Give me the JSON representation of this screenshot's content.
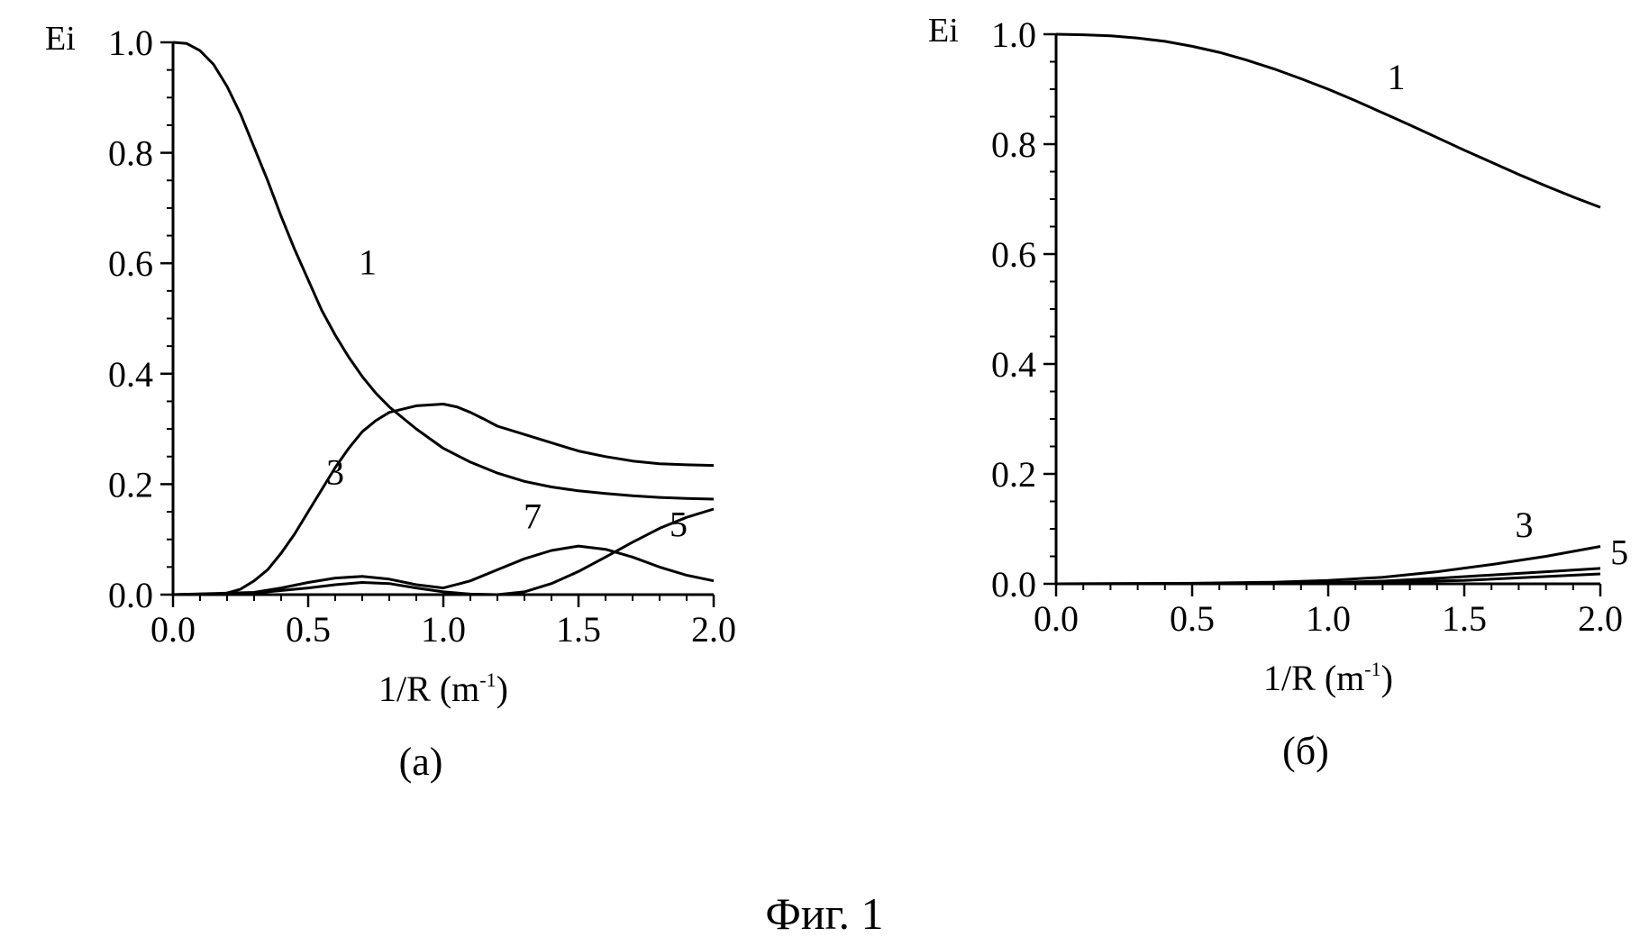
{
  "figure_caption": "Фиг. 1",
  "chart_data": [
    {
      "type": "line",
      "panel_label": "(a)",
      "title": "",
      "xlabel_base": "1/R (m",
      "xlabel_sup": "-1",
      "xlabel_end": ")",
      "ylabel": "Ei",
      "xlim": [
        0,
        2
      ],
      "ylim": [
        0,
        1
      ],
      "xticks": [
        "0.0",
        "0.5",
        "1.0",
        "1.5",
        "2.0"
      ],
      "yticks": [
        "0.0",
        "0.2",
        "0.4",
        "0.6",
        "0.8",
        "1.0"
      ],
      "grid": false,
      "series": [
        {
          "name": "1",
          "label_at": [
            0.72,
            0.58
          ],
          "points": [
            [
              0,
              1.0
            ],
            [
              0.05,
              0.998
            ],
            [
              0.1,
              0.985
            ],
            [
              0.15,
              0.96
            ],
            [
              0.2,
              0.92
            ],
            [
              0.25,
              0.87
            ],
            [
              0.3,
              0.81
            ],
            [
              0.35,
              0.75
            ],
            [
              0.4,
              0.685
            ],
            [
              0.45,
              0.625
            ],
            [
              0.5,
              0.57
            ],
            [
              0.55,
              0.515
            ],
            [
              0.6,
              0.47
            ],
            [
              0.65,
              0.43
            ],
            [
              0.7,
              0.395
            ],
            [
              0.75,
              0.365
            ],
            [
              0.8,
              0.34
            ],
            [
              0.9,
              0.3
            ],
            [
              1.0,
              0.265
            ],
            [
              1.1,
              0.24
            ],
            [
              1.2,
              0.22
            ],
            [
              1.3,
              0.205
            ],
            [
              1.4,
              0.195
            ],
            [
              1.5,
              0.188
            ],
            [
              1.6,
              0.183
            ],
            [
              1.7,
              0.179
            ],
            [
              1.8,
              0.176
            ],
            [
              1.9,
              0.174
            ],
            [
              2.0,
              0.173
            ]
          ]
        },
        {
          "name": "3",
          "label_at": [
            0.6,
            0.2
          ],
          "points": [
            [
              0,
              0
            ],
            [
              0.15,
              0.0
            ],
            [
              0.2,
              0.003
            ],
            [
              0.25,
              0.01
            ],
            [
              0.3,
              0.025
            ],
            [
              0.35,
              0.045
            ],
            [
              0.4,
              0.075
            ],
            [
              0.45,
              0.11
            ],
            [
              0.5,
              0.15
            ],
            [
              0.55,
              0.19
            ],
            [
              0.6,
              0.23
            ],
            [
              0.65,
              0.265
            ],
            [
              0.7,
              0.295
            ],
            [
              0.75,
              0.315
            ],
            [
              0.8,
              0.33
            ],
            [
              0.9,
              0.342
            ],
            [
              1.0,
              0.345
            ],
            [
              1.05,
              0.34
            ],
            [
              1.1,
              0.33
            ],
            [
              1.15,
              0.318
            ],
            [
              1.2,
              0.305
            ],
            [
              1.3,
              0.29
            ],
            [
              1.4,
              0.275
            ],
            [
              1.5,
              0.26
            ],
            [
              1.6,
              0.25
            ],
            [
              1.7,
              0.242
            ],
            [
              1.8,
              0.237
            ],
            [
              1.9,
              0.235
            ],
            [
              2.0,
              0.234
            ]
          ]
        },
        {
          "name": "5",
          "label_at": [
            1.87,
            0.105
          ],
          "points": [
            [
              0,
              0
            ],
            [
              0.3,
              0.003
            ],
            [
              0.5,
              0.012
            ],
            [
              0.6,
              0.018
            ],
            [
              0.7,
              0.022
            ],
            [
              0.8,
              0.02
            ],
            [
              0.9,
              0.012
            ],
            [
              1.0,
              0.005
            ],
            [
              1.1,
              0.001
            ],
            [
              1.2,
              0.0
            ],
            [
              1.3,
              0.005
            ],
            [
              1.4,
              0.02
            ],
            [
              1.5,
              0.042
            ],
            [
              1.6,
              0.068
            ],
            [
              1.7,
              0.095
            ],
            [
              1.8,
              0.12
            ],
            [
              1.9,
              0.14
            ],
            [
              2.0,
              0.155
            ]
          ]
        },
        {
          "name": "7",
          "label_at": [
            1.33,
            0.12
          ],
          "points": [
            [
              0,
              0
            ],
            [
              0.3,
              0.004
            ],
            [
              0.4,
              0.012
            ],
            [
              0.5,
              0.022
            ],
            [
              0.6,
              0.03
            ],
            [
              0.7,
              0.033
            ],
            [
              0.8,
              0.028
            ],
            [
              0.9,
              0.018
            ],
            [
              1.0,
              0.012
            ],
            [
              1.1,
              0.025
            ],
            [
              1.2,
              0.045
            ],
            [
              1.3,
              0.065
            ],
            [
              1.4,
              0.08
            ],
            [
              1.5,
              0.088
            ],
            [
              1.6,
              0.082
            ],
            [
              1.7,
              0.068
            ],
            [
              1.8,
              0.05
            ],
            [
              1.9,
              0.035
            ],
            [
              2.0,
              0.025
            ]
          ]
        }
      ]
    },
    {
      "type": "line",
      "panel_label": "(б)",
      "title": "",
      "xlabel_base": "1/R (m",
      "xlabel_sup": "-1",
      "xlabel_end": ")",
      "ylabel": "Ei",
      "xlim": [
        0,
        2
      ],
      "ylim": [
        0,
        1
      ],
      "xticks": [
        "0.0",
        "0.5",
        "1.0",
        "1.5",
        "2.0"
      ],
      "yticks": [
        "0.0",
        "0.2",
        "0.4",
        "0.6",
        "0.8",
        "1.0"
      ],
      "grid": false,
      "series": [
        {
          "name": "1",
          "label_at": [
            1.25,
            0.9
          ],
          "points": [
            [
              0,
              1.0
            ],
            [
              0.1,
              0.999
            ],
            [
              0.2,
              0.997
            ],
            [
              0.3,
              0.993
            ],
            [
              0.4,
              0.987
            ],
            [
              0.5,
              0.978
            ],
            [
              0.6,
              0.967
            ],
            [
              0.7,
              0.953
            ],
            [
              0.8,
              0.937
            ],
            [
              0.9,
              0.919
            ],
            [
              1.0,
              0.9
            ],
            [
              1.1,
              0.879
            ],
            [
              1.2,
              0.857
            ],
            [
              1.3,
              0.835
            ],
            [
              1.4,
              0.812
            ],
            [
              1.5,
              0.789
            ],
            [
              1.6,
              0.767
            ],
            [
              1.7,
              0.745
            ],
            [
              1.8,
              0.724
            ],
            [
              1.9,
              0.704
            ],
            [
              2.0,
              0.685
            ]
          ]
        },
        {
          "name": "3",
          "label_at": [
            1.72,
            0.085
          ],
          "points": [
            [
              0,
              0
            ],
            [
              0.5,
              0.001
            ],
            [
              0.8,
              0.003
            ],
            [
              1.0,
              0.006
            ],
            [
              1.2,
              0.012
            ],
            [
              1.4,
              0.022
            ],
            [
              1.6,
              0.035
            ],
            [
              1.8,
              0.05
            ],
            [
              2.0,
              0.068
            ]
          ]
        },
        {
          "name": "5",
          "label_at": [
            2.07,
            0.035
          ],
          "points": [
            [
              0,
              0
            ],
            [
              0.5,
              0.0
            ],
            [
              1.0,
              0.002
            ],
            [
              1.2,
              0.005
            ],
            [
              1.4,
              0.01
            ],
            [
              1.6,
              0.016
            ],
            [
              1.8,
              0.022
            ],
            [
              2.0,
              0.028
            ]
          ]
        },
        {
          "name": "",
          "label_at": null,
          "points": [
            [
              0,
              0
            ],
            [
              1.0,
              0.001
            ],
            [
              1.5,
              0.006
            ],
            [
              2.0,
              0.018
            ]
          ]
        }
      ]
    }
  ]
}
